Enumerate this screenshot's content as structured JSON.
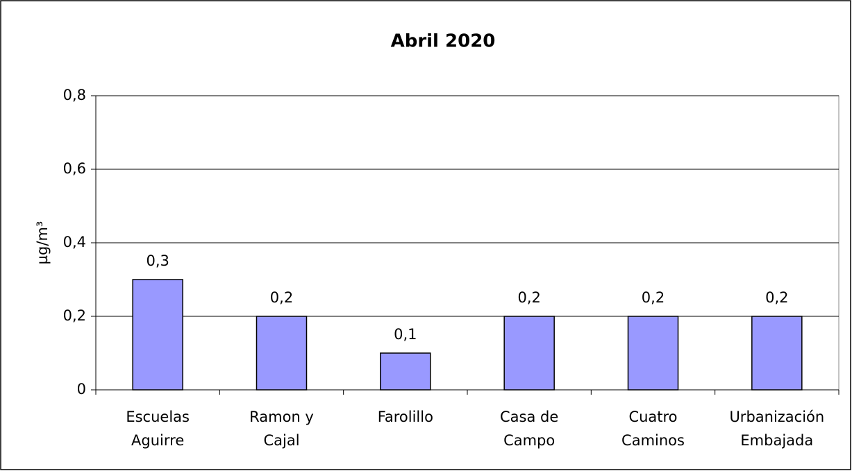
{
  "chart_data": {
    "type": "bar",
    "title": "Abril 2020",
    "y_label": "µg/m³",
    "categories": [
      "Escuelas\nAguirre",
      "Ramon y\nCajal",
      "Farolillo",
      "Casa de\nCampo",
      "Cuatro\nCaminos",
      "Urbanización\nEmbajada"
    ],
    "values": [
      0.3,
      0.2,
      0.1,
      0.2,
      0.2,
      0.2
    ],
    "value_labels": [
      "0,3",
      "0,2",
      "0,1",
      "0,2",
      "0,2",
      "0,2"
    ],
    "color": "#9999ff",
    "ylim": [
      0,
      0.8
    ],
    "yticks": [
      0,
      {
        "value": 0.2,
        "label": "0,2"
      },
      {
        "value": 0.4,
        "label": "0,4"
      },
      {
        "value": 0.6,
        "label": "0,6"
      },
      {
        "value": 0.8,
        "label": "0,8"
      }
    ],
    "grid": true
  }
}
